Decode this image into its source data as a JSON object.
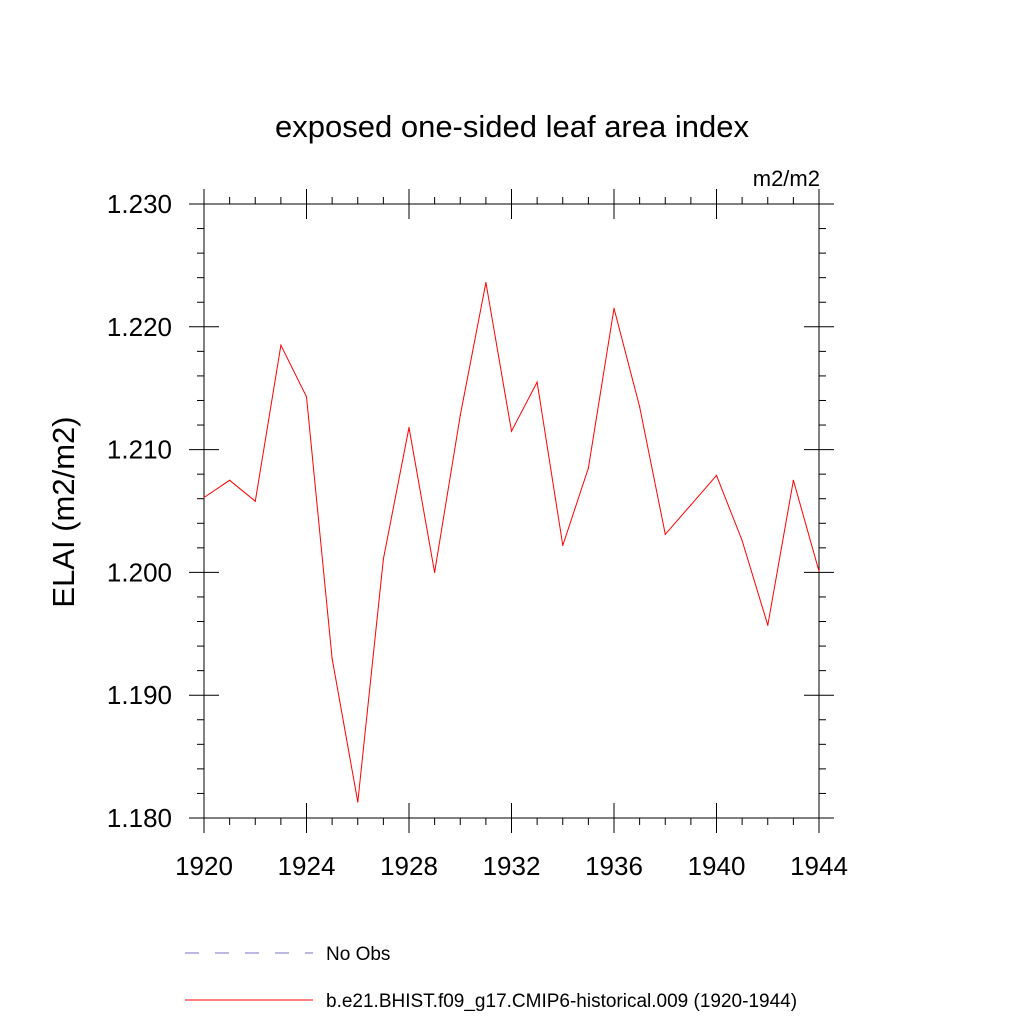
{
  "chart_data": {
    "type": "line",
    "title": "exposed one-sided leaf area index",
    "units": "m2/m2",
    "ylabel": "ELAI  (m2/m2)",
    "xlabel": "",
    "xlim": [
      1920,
      1944
    ],
    "ylim": [
      1.18,
      1.23
    ],
    "xticks": [
      1920,
      1924,
      1928,
      1932,
      1936,
      1940,
      1944
    ],
    "xtick_labels": [
      "1920",
      "1924",
      "1928",
      "1932",
      "1936",
      "1940",
      "1944"
    ],
    "yticks": [
      1.18,
      1.19,
      1.2,
      1.21,
      1.22,
      1.23
    ],
    "ytick_labels": [
      "1.180",
      "1.190",
      "1.200",
      "1.210",
      "1.220",
      "1.230"
    ],
    "series": [
      {
        "name": "b.e21.BHIST.f09_g17.CMIP6-historical.009 (1920-1944)",
        "color": "#ff0000",
        "x": [
          1920,
          1921,
          1922,
          1923,
          1924,
          1925,
          1926,
          1927,
          1928,
          1929,
          1930,
          1931,
          1932,
          1933,
          1934,
          1935,
          1936,
          1937,
          1938,
          1939,
          1940,
          1941,
          1942,
          1943,
          1944
        ],
        "values": [
          1.2061,
          1.2075,
          1.2058,
          1.2185,
          1.2143,
          1.193,
          1.1813,
          1.2011,
          1.2118,
          1.2,
          1.2128,
          1.2236,
          1.2115,
          1.2155,
          1.2022,
          1.2085,
          1.2215,
          1.2135,
          1.2031,
          1.2055,
          1.2079,
          1.2026,
          1.1957,
          1.2075,
          1.2001
        ]
      }
    ],
    "legend": [
      {
        "label": "No Obs",
        "style": "dashed",
        "color": "#7a70c8"
      },
      {
        "label": "b.e21.BHIST.f09_g17.CMIP6-historical.009 (1920-1944)",
        "style": "solid",
        "color": "#ff0000"
      }
    ]
  }
}
